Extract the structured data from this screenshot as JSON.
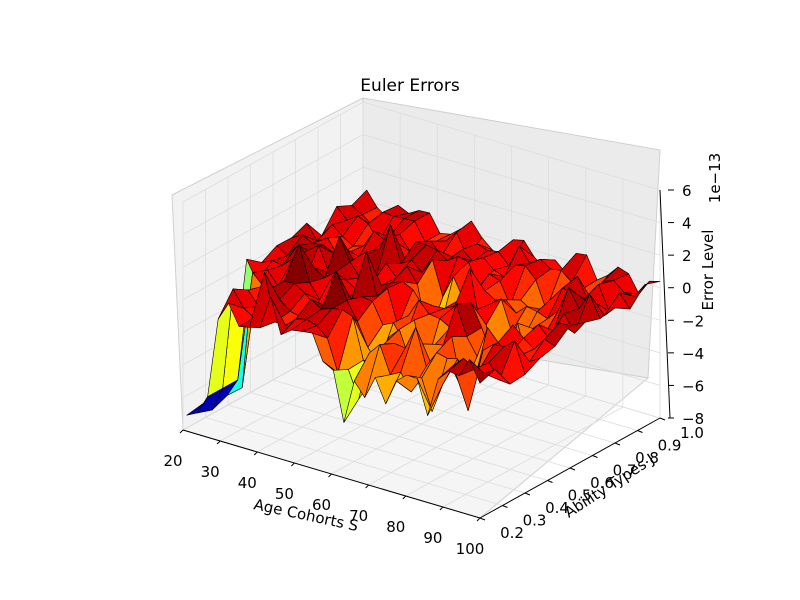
{
  "chart_data": {
    "type": "surface3d",
    "title": "Euler Errors",
    "xlabel": "Age Cohorts S",
    "ylabel": "Ability Types J",
    "zlabel": "Error Level",
    "offset_text": "1e−13",
    "xlim": [
      20,
      100
    ],
    "ylim": [
      0.2,
      1.0
    ],
    "zlim": [
      -8,
      6
    ],
    "x_ticks": [
      "20",
      "30",
      "40",
      "50",
      "60",
      "70",
      "80",
      "90",
      "100"
    ],
    "y_ticks": [
      "0.2",
      "0.3",
      "0.4",
      "0.5",
      "0.6",
      "0.7",
      "0.8",
      "0.9",
      "1.0"
    ],
    "z_ticks": [
      "6",
      "4",
      "2",
      "0",
      "−2",
      "−4",
      "−6",
      "−8"
    ],
    "grid": true,
    "colormap": "jet",
    "surface_note": "error surface near zero across ages 21-100 and abilities 0.2-1.0; large negative wall near age 21 at low ability; spikes down to about -8e-13 around ages 60-85"
  }
}
